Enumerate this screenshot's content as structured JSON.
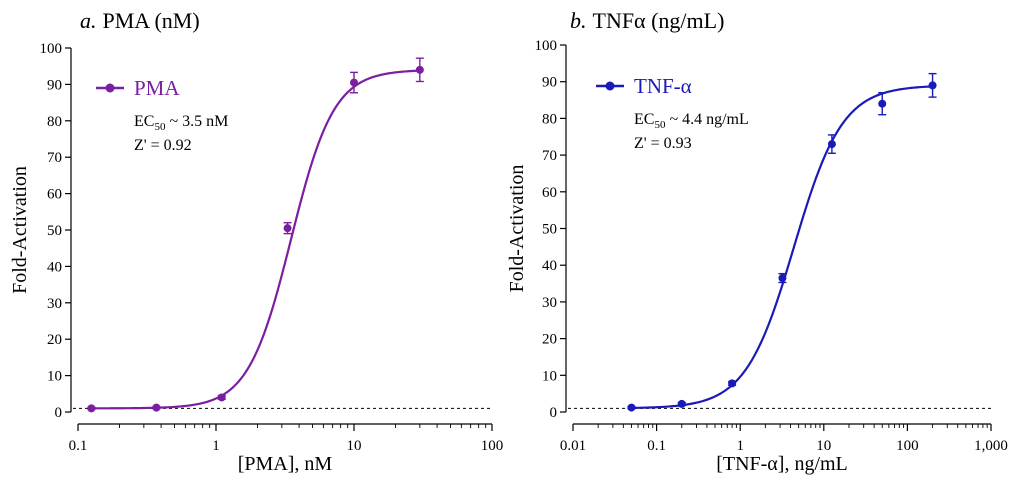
{
  "chart_data": [
    {
      "type": "scatter",
      "title": "a. PMA (nM)",
      "title_italic_prefix": "a.",
      "title_rest": "PMA (nM)",
      "xlabel": "[PMA], nM",
      "ylabel": "Fold-Activation",
      "xscale": "log",
      "xlim": [
        0.1,
        100
      ],
      "ylim": [
        0,
        100
      ],
      "xticks": [
        0.1,
        1,
        10,
        100
      ],
      "xtick_labels": [
        "0.1",
        "1",
        "10",
        "100"
      ],
      "yticks": [
        0,
        10,
        20,
        30,
        40,
        50,
        60,
        70,
        80,
        90,
        100
      ],
      "ytick_labels": [
        "0",
        "10",
        "20",
        "30",
        "40",
        "50",
        "60",
        "70",
        "80",
        "90",
        "100"
      ],
      "legend_position": "top-left",
      "baseline_y": 1,
      "series": [
        {
          "name": "PMA",
          "color": "#7a1fa0",
          "x": [
            0.125,
            0.37,
            1.1,
            3.3,
            10,
            30
          ],
          "y": [
            1.0,
            1.2,
            4.0,
            50.5,
            90.5,
            94.0
          ],
          "yerr": [
            0.3,
            0.3,
            0.5,
            1.5,
            2.8,
            3.2
          ],
          "fit": {
            "bottom": 1.0,
            "top": 94.0,
            "ec50": 3.5,
            "hill": 2.8
          }
        }
      ],
      "annotations": {
        "ec50_prefix": "EC",
        "ec50_sub": "50",
        "ec50_value": " ~ 3.5 nM",
        "z_prime": "Z' = 0.92"
      }
    },
    {
      "type": "scatter",
      "title": "b. TNFα (ng/mL)",
      "title_italic_prefix": "b.",
      "title_rest": "TNFα (ng/mL)",
      "xlabel": "[TNF-α], ng/mL",
      "ylabel": "Fold-Activation",
      "xscale": "log",
      "xlim": [
        0.01,
        1000
      ],
      "ylim": [
        0,
        100
      ],
      "xticks": [
        0.01,
        0.1,
        1,
        10,
        100,
        1000
      ],
      "xtick_labels": [
        "0.01",
        "0.1",
        "1",
        "10",
        "100",
        "1,000"
      ],
      "yticks": [
        0,
        10,
        20,
        30,
        40,
        50,
        60,
        70,
        80,
        90,
        100
      ],
      "ytick_labels": [
        "0",
        "10",
        "20",
        "30",
        "40",
        "50",
        "60",
        "70",
        "80",
        "90",
        "100"
      ],
      "legend_position": "top-left",
      "baseline_y": 1,
      "series": [
        {
          "name": "TNF-α",
          "color": "#1a1ab8",
          "x": [
            0.05,
            0.2,
            0.8,
            3.2,
            12.5,
            50,
            200
          ],
          "y": [
            1.2,
            2.2,
            7.8,
            36.5,
            73.0,
            84.0,
            89.0
          ],
          "yerr": [
            0.3,
            0.4,
            0.5,
            1.2,
            2.5,
            3.0,
            3.2
          ],
          "fit": {
            "bottom": 1.0,
            "top": 89.0,
            "ec50": 4.4,
            "hill": 1.5
          }
        }
      ],
      "annotations": {
        "ec50_prefix": "EC",
        "ec50_sub": "50",
        "ec50_value": " ~ 4.4 ng/mL",
        "z_prime": "Z' = 0.93"
      }
    }
  ]
}
